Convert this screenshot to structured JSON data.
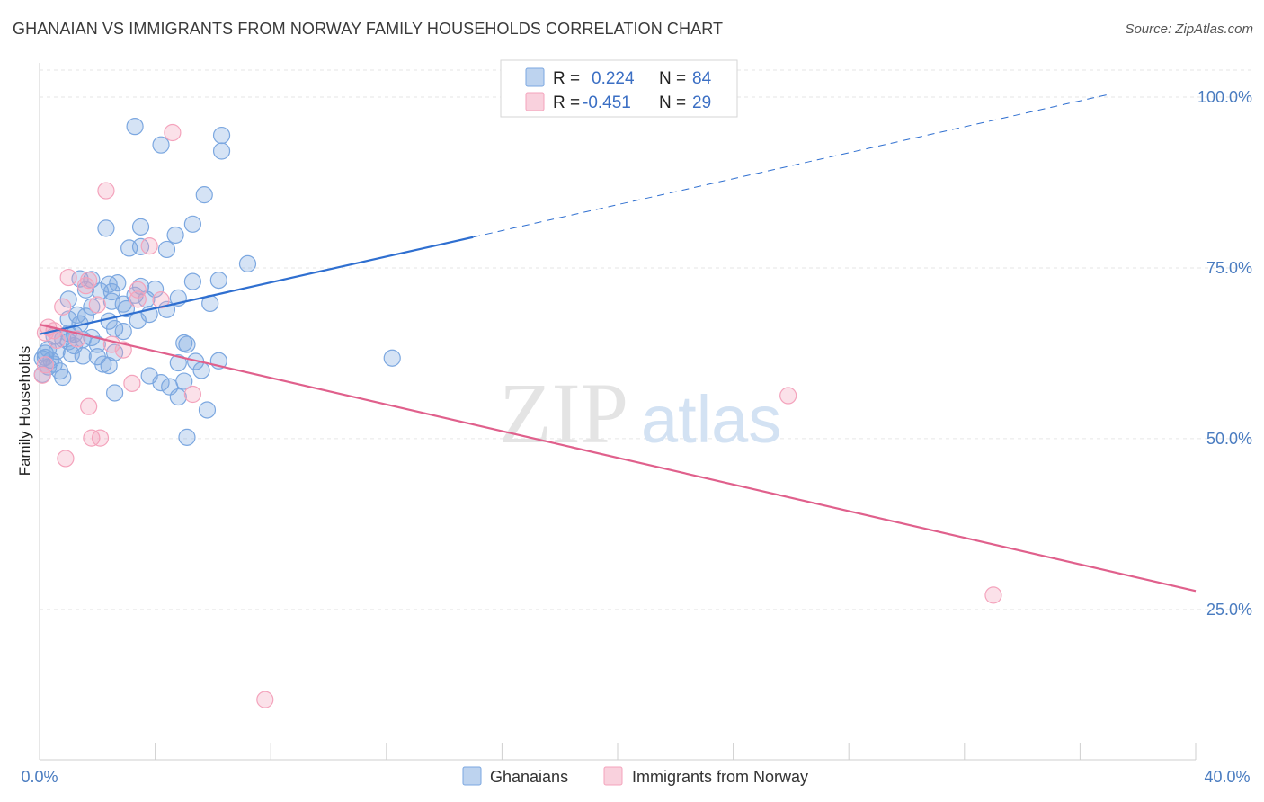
{
  "chart_data": {
    "type": "scatter",
    "title": "GHANAIAN VS IMMIGRANTS FROM NORWAY FAMILY HOUSEHOLDS CORRELATION CHART",
    "source": "Source: ZipAtlas.com",
    "ylabel": "Family Households",
    "xlabel": "",
    "xlim": [
      0,
      40
    ],
    "ylim": [
      3,
      105
    ],
    "x_tick_labels": [
      "0.0%",
      "40.0%"
    ],
    "y_ticks": [
      25,
      50,
      75,
      100
    ],
    "y_tick_labels": [
      "25.0%",
      "50.0%",
      "75.0%",
      "100.0%"
    ],
    "grid": true,
    "watermark": "ZIPatlas",
    "legend_stats": [
      {
        "r_label": "R =",
        "r_value": "0.224",
        "n_label": "N =",
        "n_value": "84"
      },
      {
        "r_label": "R =",
        "r_value": "-0.451",
        "n_label": "N =",
        "n_value": "29"
      }
    ],
    "series": [
      {
        "name": "Ghanaians",
        "color": "#7ba7e0",
        "line_color": "#2f6fd0",
        "trend": {
          "x0": 0,
          "y0": 65.3,
          "x1": 15,
          "y1": 79.5,
          "dash_to_x": 37,
          "dash_to_y": 100.4
        },
        "points": [
          [
            3.3,
            95.7
          ],
          [
            4.2,
            93.0
          ],
          [
            6.3,
            94.4
          ],
          [
            6.3,
            92.1
          ],
          [
            5.7,
            85.7
          ],
          [
            2.3,
            80.8
          ],
          [
            3.5,
            81.0
          ],
          [
            5.3,
            81.4
          ],
          [
            4.7,
            79.8
          ],
          [
            3.1,
            77.9
          ],
          [
            3.5,
            78.1
          ],
          [
            4.4,
            77.7
          ],
          [
            7.2,
            75.6
          ],
          [
            1.4,
            73.4
          ],
          [
            1.8,
            73.3
          ],
          [
            2.4,
            72.6
          ],
          [
            2.7,
            72.8
          ],
          [
            3.5,
            72.3
          ],
          [
            4.0,
            71.9
          ],
          [
            5.3,
            73.0
          ],
          [
            6.2,
            73.2
          ],
          [
            1.6,
            71.8
          ],
          [
            2.1,
            71.6
          ],
          [
            2.5,
            71.5
          ],
          [
            3.3,
            71.0
          ],
          [
            4.8,
            70.6
          ],
          [
            1.0,
            70.4
          ],
          [
            2.5,
            70.1
          ],
          [
            2.9,
            69.7
          ],
          [
            3.7,
            70.4
          ],
          [
            5.9,
            69.8
          ],
          [
            1.8,
            69.3
          ],
          [
            3.0,
            69.0
          ],
          [
            4.4,
            68.9
          ],
          [
            1.3,
            68.1
          ],
          [
            1.6,
            67.9
          ],
          [
            2.4,
            67.2
          ],
          [
            3.4,
            67.3
          ],
          [
            3.8,
            68.2
          ],
          [
            1.0,
            67.5
          ],
          [
            1.4,
            66.8
          ],
          [
            2.6,
            66.1
          ],
          [
            2.9,
            65.7
          ],
          [
            1.2,
            65.3
          ],
          [
            0.5,
            65.0
          ],
          [
            0.8,
            64.6
          ],
          [
            1.0,
            64.2
          ],
          [
            1.2,
            63.6
          ],
          [
            1.5,
            64.5
          ],
          [
            1.8,
            64.8
          ],
          [
            2.0,
            63.8
          ],
          [
            5.0,
            64.0
          ],
          [
            5.1,
            63.8
          ],
          [
            0.3,
            63.1
          ],
          [
            0.6,
            62.8
          ],
          [
            1.1,
            62.4
          ],
          [
            1.5,
            62.1
          ],
          [
            2.6,
            62.6
          ],
          [
            0.2,
            61.9
          ],
          [
            0.4,
            61.5
          ],
          [
            0.5,
            60.9
          ],
          [
            2.2,
            60.9
          ],
          [
            5.4,
            61.3
          ],
          [
            6.2,
            61.4
          ],
          [
            4.8,
            61.1
          ],
          [
            0.3,
            60.5
          ],
          [
            0.7,
            59.9
          ],
          [
            2.4,
            60.7
          ],
          [
            5.6,
            60.0
          ],
          [
            0.1,
            59.4
          ],
          [
            0.8,
            59.0
          ],
          [
            3.8,
            59.2
          ],
          [
            4.2,
            58.2
          ],
          [
            4.5,
            57.6
          ],
          [
            5.0,
            58.4
          ],
          [
            2.6,
            56.7
          ],
          [
            4.8,
            56.1
          ],
          [
            5.8,
            54.2
          ],
          [
            5.1,
            50.2
          ],
          [
            12.2,
            61.8
          ],
          [
            0.1,
            61.7
          ],
          [
            1.0,
            65.4
          ],
          [
            2.0,
            62.0
          ],
          [
            0.2,
            62.5
          ]
        ]
      },
      {
        "name": "Immigrants from Norway",
        "color": "#f4a3bc",
        "line_color": "#e0608c",
        "trend": {
          "x0": 0,
          "y0": 66.7,
          "x1": 40,
          "y1": 27.7
        },
        "points": [
          [
            4.6,
            94.8
          ],
          [
            2.3,
            86.3
          ],
          [
            3.8,
            78.2
          ],
          [
            1.0,
            73.6
          ],
          [
            1.7,
            73.2
          ],
          [
            1.6,
            72.4
          ],
          [
            3.4,
            71.8
          ],
          [
            3.4,
            70.4
          ],
          [
            4.2,
            70.3
          ],
          [
            0.8,
            69.3
          ],
          [
            2.0,
            69.6
          ],
          [
            0.3,
            66.3
          ],
          [
            0.5,
            65.8
          ],
          [
            0.2,
            65.5
          ],
          [
            2.5,
            63.8
          ],
          [
            2.9,
            63.0
          ],
          [
            0.2,
            60.8
          ],
          [
            0.1,
            59.3
          ],
          [
            3.2,
            58.1
          ],
          [
            5.3,
            56.5
          ],
          [
            1.7,
            54.7
          ],
          [
            1.8,
            50.1
          ],
          [
            2.1,
            50.1
          ],
          [
            0.9,
            47.1
          ],
          [
            25.9,
            56.3
          ],
          [
            33.0,
            27.1
          ],
          [
            7.8,
            11.8
          ],
          [
            1.3,
            64.6
          ],
          [
            0.6,
            64.4
          ]
        ]
      }
    ]
  }
}
